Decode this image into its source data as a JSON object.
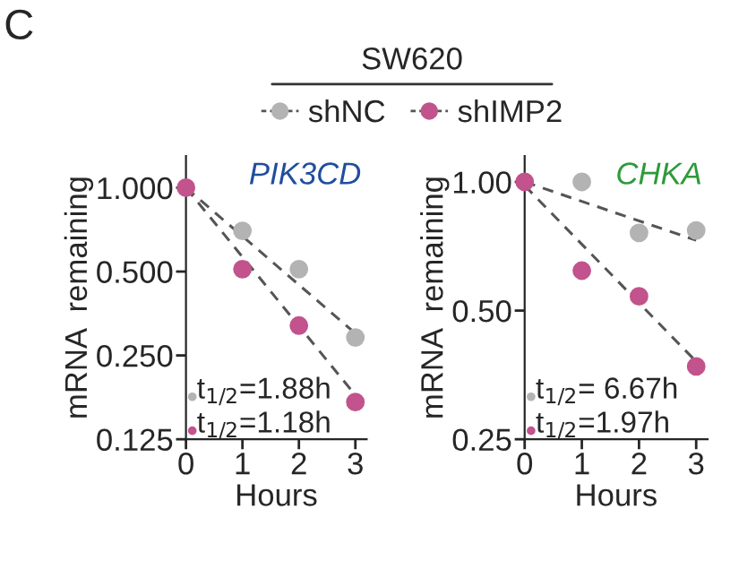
{
  "chart_data": [
    {
      "type": "scatter",
      "title": "PIK3CD",
      "xlabel": "Hours",
      "ylabel": "mRNA  remaining",
      "log": "y",
      "marker": "circle",
      "legend": "top",
      "grid": false,
      "annotations": [
        "C",
        "SW620",
        "t$_{1/2}$=1.88h",
        "t$_{1/2}$=1.18h"
      ],
      "xlim": [
        0,
        3.2
      ],
      "xticks": [
        0,
        1,
        2,
        3
      ],
      "ylim": [
        0.125,
        1.3
      ],
      "yticks": [
        0.125,
        {
          "value": 0.25,
          "label": "0.250"
        },
        {
          "value": 0.5,
          "label": "0.500"
        },
        {
          "value": 1,
          "label": "1.000"
        }
      ],
      "series": [
        {
          "name": "shNC",
          "color": "#b3b3b3",
          "x": [
            1,
            2,
            3
          ],
          "values": [
            0.7,
            0.51,
            0.29
          ]
        },
        {
          "name": "shIMP2",
          "color": "#c2538c",
          "x": [
            0,
            1,
            2,
            3
          ],
          "values": [
            1.0,
            0.51,
            0.32,
            0.17
          ]
        },
        {
          "type": "line",
          "marker": "none",
          "line_style": "dashed",
          "color": "#555555",
          "x": [
            0,
            3
          ],
          "values": [
            1.0,
            0.3
          ]
        },
        {
          "type": "line",
          "marker": "none",
          "line_style": "dashed",
          "color": "#555555",
          "x": [
            0,
            3
          ],
          "values": [
            1.0,
            0.18
          ]
        }
      ]
    },
    {
      "type": "scatter",
      "title": "CHKA",
      "xlabel": "Hours",
      "ylabel": "mRNA  remaining",
      "log": "y",
      "marker": "circle",
      "grid": false,
      "annotations": [
        "t$_{1/2}$= 6.67h",
        "t$_{1/2}$=1.97h"
      ],
      "xlim": [
        0,
        3.2
      ],
      "xticks": [
        0,
        1,
        2,
        3
      ],
      "ylim": [
        0.25,
        1.15
      ],
      "yticks": [
        {
          "value": 0.25,
          "label": "0.25"
        },
        {
          "value": 0.5,
          "label": "0.50"
        },
        {
          "value": 1,
          "label": "1.00"
        }
      ],
      "series": [
        {
          "color": "#b3b3b3",
          "x": [
            1,
            2,
            3
          ],
          "values": [
            1.0,
            0.76,
            0.77
          ]
        },
        {
          "color": "#c2538c",
          "x": [
            0,
            1,
            2,
            3
          ],
          "values": [
            1.0,
            0.62,
            0.54,
            0.37
          ]
        },
        {
          "type": "line",
          "marker": "none",
          "line_style": "dashed",
          "color": "#555555",
          "x": [
            0,
            3
          ],
          "values": [
            1.0,
            0.73
          ]
        },
        {
          "type": "line",
          "marker": "none",
          "line_style": "dashed",
          "color": "#555555",
          "x": [
            0,
            3
          ],
          "values": [
            0.98,
            0.38
          ]
        }
      ]
    }
  ]
}
